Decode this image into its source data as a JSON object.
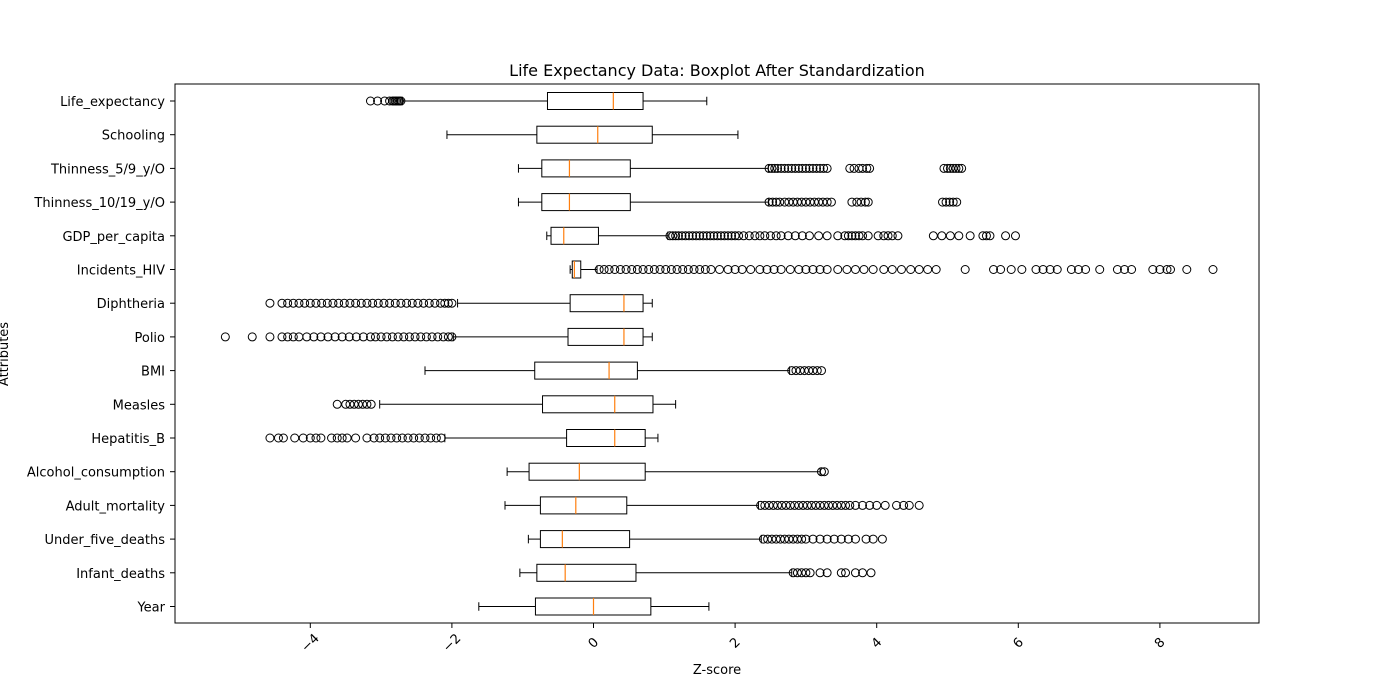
{
  "chart_data": {
    "type": "boxplot",
    "orientation": "horizontal",
    "title": "Life Expectancy Data: Boxplot After Standardization",
    "xlabel": "Z-score",
    "ylabel": "Attributes",
    "xlim": [
      -5.8,
      9.4
    ],
    "xticks": [
      -4,
      -2,
      0,
      2,
      4,
      6,
      8
    ],
    "xtick_labels": [
      "−4",
      "−2",
      "0",
      "2",
      "4",
      "6",
      "8"
    ],
    "xtick_rotation": 45,
    "grid": false,
    "colors": {
      "box": "#000000",
      "median": "#ff7f0e",
      "background": "#ffffff"
    },
    "series": [
      {
        "name": "Life_expectancy",
        "whislo": -2.7,
        "q1": -0.65,
        "med": 0.28,
        "q3": 0.7,
        "whishi": 1.6,
        "fliers": [
          -3.15,
          -3.05,
          -2.95,
          -2.88,
          -2.84,
          -2.82,
          -2.8,
          -2.78,
          -2.76,
          -2.74,
          -2.72
        ]
      },
      {
        "name": "Schooling",
        "whislo": -2.07,
        "q1": -0.8,
        "med": 0.06,
        "q3": 0.83,
        "whishi": 2.04,
        "fliers": []
      },
      {
        "name": "Thinness_5/9_y/O",
        "whislo": -1.06,
        "q1": -0.73,
        "med": -0.34,
        "q3": 0.52,
        "whishi": 2.47,
        "fliers": [
          2.48,
          2.52,
          2.56,
          2.6,
          2.65,
          2.7,
          2.75,
          2.8,
          2.85,
          2.9,
          2.95,
          3.0,
          3.05,
          3.1,
          3.15,
          3.2,
          3.25,
          3.3,
          3.62,
          3.68,
          3.75,
          3.8,
          3.86,
          3.9,
          4.95,
          5.0,
          5.04,
          5.08,
          5.12,
          5.16,
          5.2
        ]
      },
      {
        "name": "Thinness_10/19_y/O",
        "whislo": -1.06,
        "q1": -0.73,
        "med": -0.34,
        "q3": 0.52,
        "whishi": 2.47,
        "fliers": [
          2.48,
          2.53,
          2.58,
          2.63,
          2.7,
          2.76,
          2.82,
          2.88,
          2.94,
          3.0,
          3.06,
          3.12,
          3.18,
          3.24,
          3.3,
          3.36,
          3.65,
          3.72,
          3.78,
          3.84,
          3.88,
          4.93,
          4.98,
          5.03,
          5.08,
          5.13
        ]
      },
      {
        "name": "GDP_per_capita",
        "whislo": -0.66,
        "q1": -0.6,
        "med": -0.42,
        "q3": 0.07,
        "whishi": 1.05,
        "fliers": [
          1.08,
          1.12,
          1.16,
          1.2,
          1.25,
          1.3,
          1.35,
          1.4,
          1.45,
          1.5,
          1.55,
          1.6,
          1.65,
          1.7,
          1.75,
          1.8,
          1.85,
          1.9,
          1.95,
          2.0,
          2.05,
          2.12,
          2.2,
          2.28,
          2.35,
          2.42,
          2.5,
          2.58,
          2.65,
          2.75,
          2.85,
          2.95,
          3.05,
          3.18,
          3.3,
          3.45,
          3.55,
          3.6,
          3.65,
          3.7,
          3.75,
          3.8,
          3.88,
          4.02,
          4.1,
          4.16,
          4.22,
          4.3,
          4.8,
          4.92,
          5.04,
          5.16,
          5.32,
          5.5,
          5.55,
          5.6,
          5.82,
          5.96
        ]
      },
      {
        "name": "Incidents_HIV",
        "whislo": -0.33,
        "q1": -0.3,
        "med": -0.27,
        "q3": -0.18,
        "whishi": 0.05,
        "fliers": [
          0.08,
          0.15,
          0.22,
          0.3,
          0.38,
          0.46,
          0.54,
          0.62,
          0.7,
          0.78,
          0.86,
          0.94,
          1.02,
          1.1,
          1.18,
          1.26,
          1.34,
          1.42,
          1.5,
          1.58,
          1.66,
          1.78,
          1.9,
          2.0,
          2.1,
          2.22,
          2.35,
          2.45,
          2.55,
          2.65,
          2.78,
          2.9,
          3.0,
          3.1,
          3.2,
          3.3,
          3.45,
          3.58,
          3.7,
          3.82,
          3.95,
          4.1,
          4.22,
          4.35,
          4.48,
          4.6,
          4.72,
          4.84,
          5.25,
          5.65,
          5.75,
          5.9,
          6.05,
          6.25,
          6.35,
          6.45,
          6.55,
          6.75,
          6.85,
          6.95,
          7.15,
          7.4,
          7.5,
          7.6,
          7.9,
          8.0,
          8.1,
          8.15,
          8.38,
          8.75
        ]
      },
      {
        "name": "Diphtheria",
        "whislo": -1.92,
        "q1": -0.33,
        "med": 0.43,
        "q3": 0.7,
        "whishi": 0.83,
        "fliers": [
          -4.57,
          -4.4,
          -4.32,
          -4.24,
          -4.16,
          -4.08,
          -4.0,
          -3.92,
          -3.84,
          -3.76,
          -3.68,
          -3.6,
          -3.52,
          -3.44,
          -3.36,
          -3.28,
          -3.2,
          -3.12,
          -3.04,
          -2.96,
          -2.88,
          -2.8,
          -2.72,
          -2.64,
          -2.56,
          -2.48,
          -2.4,
          -2.32,
          -2.24,
          -2.16,
          -2.1,
          -2.05,
          -2.0
        ]
      },
      {
        "name": "Polio",
        "whislo": -1.98,
        "q1": -0.36,
        "med": 0.43,
        "q3": 0.7,
        "whishi": 0.83,
        "fliers": [
          -5.2,
          -4.82,
          -4.57,
          -4.4,
          -4.32,
          -4.24,
          -4.16,
          -4.05,
          -3.95,
          -3.85,
          -3.75,
          -3.65,
          -3.55,
          -3.45,
          -3.35,
          -3.25,
          -3.15,
          -3.08,
          -3.0,
          -2.92,
          -2.84,
          -2.76,
          -2.68,
          -2.6,
          -2.52,
          -2.44,
          -2.36,
          -2.28,
          -2.2,
          -2.12,
          -2.05,
          -2.0
        ]
      },
      {
        "name": "BMI",
        "whislo": -2.38,
        "q1": -0.83,
        "med": 0.22,
        "q3": 0.62,
        "whishi": 2.77,
        "fliers": [
          2.8,
          2.86,
          2.92,
          2.98,
          3.04,
          3.1,
          3.16,
          3.22
        ]
      },
      {
        "name": "Measles",
        "whislo": -3.02,
        "q1": -0.72,
        "med": 0.3,
        "q3": 0.84,
        "whishi": 1.16,
        "fliers": [
          -3.62,
          -3.5,
          -3.44,
          -3.38,
          -3.32,
          -3.26,
          -3.2,
          -3.14
        ]
      },
      {
        "name": "Hepatitis_B",
        "whislo": -2.1,
        "q1": -0.38,
        "med": 0.3,
        "q3": 0.73,
        "whishi": 0.91,
        "fliers": [
          -4.57,
          -4.45,
          -4.38,
          -4.22,
          -4.1,
          -4.0,
          -3.92,
          -3.85,
          -3.7,
          -3.62,
          -3.55,
          -3.48,
          -3.36,
          -3.2,
          -3.1,
          -3.02,
          -2.94,
          -2.86,
          -2.78,
          -2.7,
          -2.62,
          -2.54,
          -2.46,
          -2.38,
          -2.3,
          -2.22,
          -2.15
        ]
      },
      {
        "name": "Alcohol_consumption",
        "whislo": -1.22,
        "q1": -0.91,
        "med": -0.2,
        "q3": 0.73,
        "whishi": 3.2,
        "fliers": [
          3.22,
          3.26
        ]
      },
      {
        "name": "Adult_mortality",
        "whislo": -1.25,
        "q1": -0.75,
        "med": -0.25,
        "q3": 0.47,
        "whishi": 2.33,
        "fliers": [
          2.36,
          2.42,
          2.48,
          2.54,
          2.6,
          2.66,
          2.72,
          2.78,
          2.84,
          2.9,
          2.96,
          3.02,
          3.08,
          3.14,
          3.2,
          3.26,
          3.32,
          3.38,
          3.44,
          3.5,
          3.56,
          3.62,
          3.7,
          3.8,
          3.9,
          4.0,
          4.12,
          4.28,
          4.38,
          4.46,
          4.6
        ]
      },
      {
        "name": "Under_five_deaths",
        "whislo": -0.92,
        "q1": -0.75,
        "med": -0.44,
        "q3": 0.51,
        "whishi": 2.37,
        "fliers": [
          2.4,
          2.46,
          2.52,
          2.58,
          2.64,
          2.7,
          2.76,
          2.82,
          2.88,
          2.94,
          3.0,
          3.1,
          3.2,
          3.3,
          3.4,
          3.5,
          3.6,
          3.7,
          3.85,
          3.95,
          4.08
        ]
      },
      {
        "name": "Infant_deaths",
        "whislo": -1.04,
        "q1": -0.8,
        "med": -0.4,
        "q3": 0.6,
        "whishi": 2.8,
        "fliers": [
          2.82,
          2.88,
          2.94,
          3.0,
          3.06,
          3.2,
          3.3,
          3.5,
          3.56,
          3.7,
          3.8,
          3.92
        ]
      },
      {
        "name": "Year",
        "whislo": -1.62,
        "q1": -0.82,
        "med": 0.0,
        "q3": 0.81,
        "whishi": 1.63,
        "fliers": []
      }
    ]
  }
}
